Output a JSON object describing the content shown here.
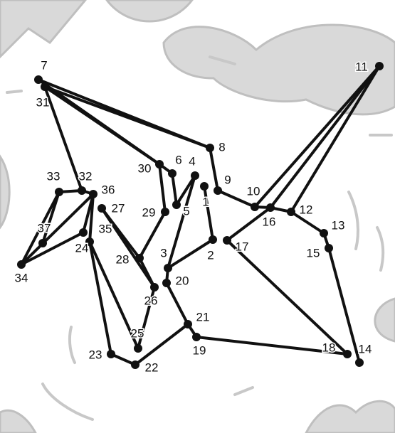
{
  "dots": [
    "1",
    "2",
    "3",
    "4",
    "5",
    "6",
    "7",
    "8",
    "9",
    "10",
    "11",
    "12",
    "13",
    "14",
    "15",
    "16",
    "17",
    "18",
    "19",
    "20",
    "21",
    "22",
    "23",
    "24",
    "25",
    "26",
    "27",
    "28",
    "29",
    "30",
    "31",
    "32",
    "33",
    "34",
    "35",
    "36",
    "37"
  ]
}
